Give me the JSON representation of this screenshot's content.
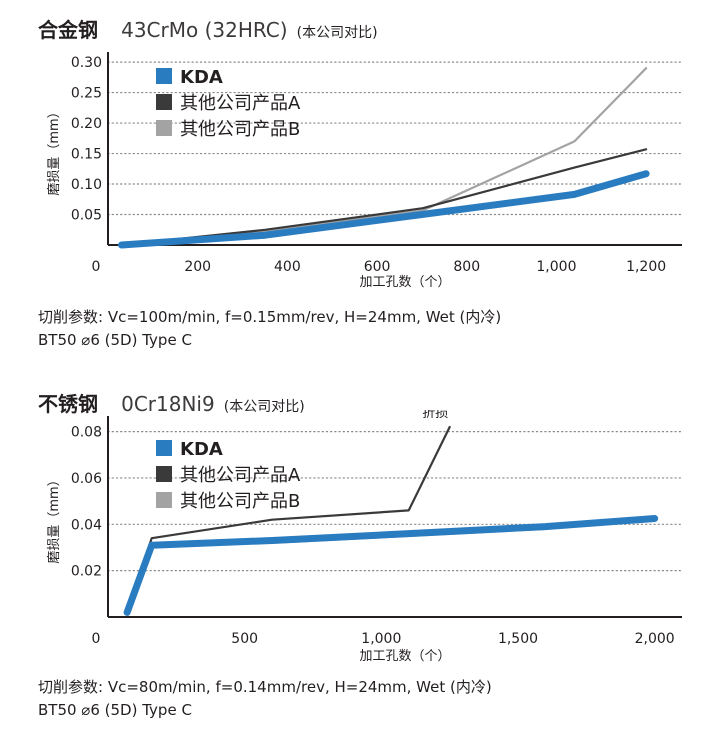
{
  "chart_data": [
    {
      "type": "line",
      "title": "合金钢",
      "subtitle": "43CrMo (32HRC)",
      "note": "(本公司对比)",
      "xlabel": "加工孔数（个）",
      "ylabel": "磨损量（mm）",
      "xlim": [
        0,
        1280
      ],
      "ylim": [
        0,
        0.31
      ],
      "xticks": [
        0,
        200,
        400,
        600,
        800,
        1000,
        1200
      ],
      "xtick_labels": [
        "0",
        "200",
        "400",
        "600",
        "800",
        "1,000",
        "1,200"
      ],
      "yticks": [
        0.05,
        0.1,
        0.15,
        0.2,
        0.25,
        0.3
      ],
      "ytick_labels": [
        "0.05",
        "0.10",
        "0.15",
        "0.20",
        "0.25",
        "0.30"
      ],
      "grid": "horizontal dotted",
      "legend": "top-left",
      "series": [
        {
          "name": "KDA",
          "color": "#2a7cc1",
          "x": [
            30,
            350,
            700,
            1040,
            1200
          ],
          "y": [
            0.0,
            0.016,
            0.05,
            0.083,
            0.117
          ]
        },
        {
          "name": "其他公司产品A",
          "color": "#3a3a3a",
          "x": [
            30,
            350,
            700,
            1040,
            1200
          ],
          "y": [
            0.0,
            0.025,
            0.06,
            0.127,
            0.157
          ]
        },
        {
          "name": "其他公司产品B",
          "color": "#a3a3a3",
          "x": [
            30,
            350,
            700,
            1040,
            1200
          ],
          "y": [
            0.0,
            0.022,
            0.056,
            0.17,
            0.29
          ]
        }
      ],
      "params": [
        "切削参数: Vc=100m/min, f=0.15mm/rev, H=24mm, Wet (内冷)",
        "BT50  ⌀6 (5D)  Type C"
      ]
    },
    {
      "type": "line",
      "title": "不锈钢",
      "subtitle": "0Cr18Ni9",
      "note": "(本公司对比)",
      "xlabel": "加工孔数（个）",
      "ylabel": "磨损量（mm）",
      "xlim": [
        0,
        2100
      ],
      "ylim": [
        0,
        0.085
      ],
      "xticks": [
        0,
        500,
        1000,
        1500,
        2000
      ],
      "xtick_labels": [
        "0",
        "500",
        "1,000",
        "1,500",
        "2,000"
      ],
      "yticks": [
        0.02,
        0.04,
        0.06,
        0.08
      ],
      "ytick_labels": [
        "0.02",
        "0.04",
        "0.06",
        "0.08"
      ],
      "grid": "horizontal dotted",
      "legend": "top-left",
      "annotations": [
        {
          "text": "折损",
          "x": 1230,
          "y": 0.082
        }
      ],
      "series": [
        {
          "name": "KDA",
          "color": "#2a7cc1",
          "x": [
            70,
            160,
            600,
            1100,
            1600,
            2000
          ],
          "y": [
            0.002,
            0.031,
            0.033,
            0.036,
            0.039,
            0.0425
          ]
        },
        {
          "name": "其他公司产品A",
          "color": "#3a3a3a",
          "x": [
            70,
            160,
            600,
            1100,
            1250
          ],
          "y": [
            0.002,
            0.034,
            0.042,
            0.046,
            0.082
          ]
        },
        {
          "name": "其他公司产品B",
          "color": "#a3a3a3",
          "x": [
            70,
            160,
            600,
            1100,
            1600,
            2000
          ],
          "y": [
            0.002,
            0.031,
            0.032,
            0.035,
            0.038,
            0.0435
          ]
        }
      ],
      "params": [
        "切削参数: Vc=80m/min, f=0.14mm/rev, H=24mm, Wet (内冷)",
        "BT50  ⌀6 (5D)  Type C"
      ]
    }
  ]
}
